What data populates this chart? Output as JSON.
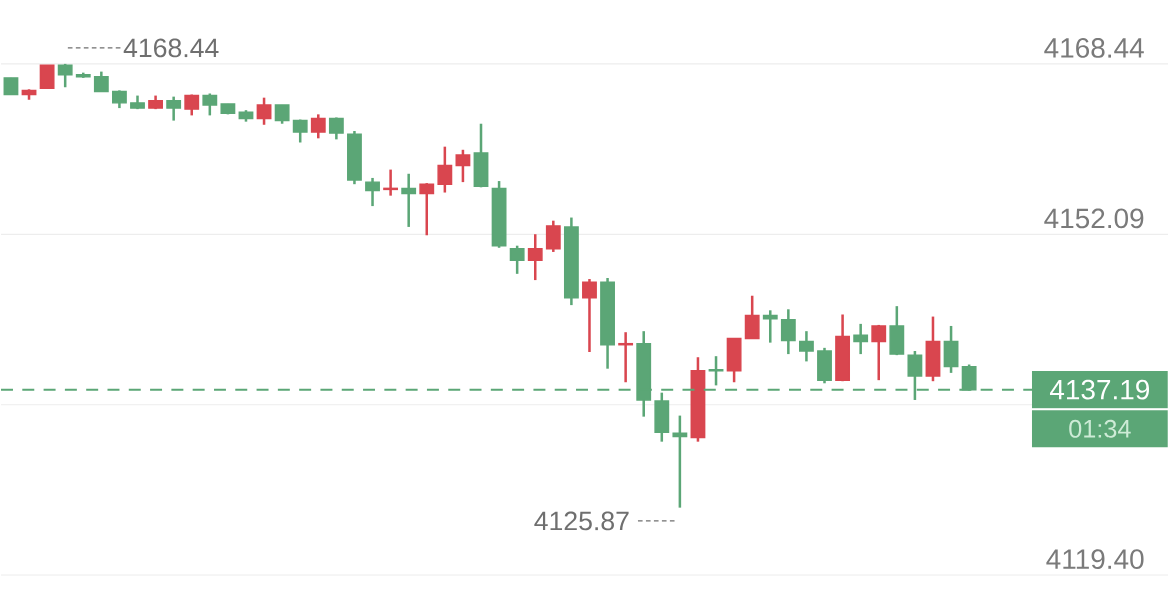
{
  "chart_data": {
    "type": "candlestick",
    "categories": [
      null,
      null,
      null,
      null,
      null,
      null,
      null,
      null,
      null,
      null,
      null,
      null,
      null,
      null,
      null,
      null,
      null,
      null,
      null,
      null,
      null,
      null,
      null,
      null,
      null,
      null,
      null,
      null,
      null,
      null,
      null,
      null,
      null,
      null,
      null,
      null,
      null,
      null,
      null,
      null,
      null,
      null,
      null,
      null,
      null,
      null,
      null,
      null,
      null,
      null,
      null,
      null,
      null,
      null
    ],
    "ohlc": [
      [
        4167.1,
        4167.1,
        4165.5,
        4165.5
      ],
      [
        4165.5,
        4166.0,
        4165.0,
        4165.9
      ],
      [
        4166.1,
        4168.3,
        4166.1,
        4168.3
      ],
      [
        4168.3,
        4168.44,
        4166.2,
        4167.4
      ],
      [
        4167.4,
        4167.6,
        4167.1,
        4167.2
      ],
      [
        4167.2,
        4167.7,
        4165.8,
        4165.8
      ],
      [
        4165.8,
        4165.9,
        4164.2,
        4164.7
      ],
      [
        4164.7,
        4165.4,
        4164.1,
        4164.2
      ],
      [
        4164.2,
        4165.4,
        4164.1,
        4164.9
      ],
      [
        4164.9,
        4165.3,
        4163.0,
        4164.2
      ],
      [
        4164.1,
        4165.5,
        4163.5,
        4165.4
      ],
      [
        4165.4,
        4165.6,
        4163.5,
        4164.5
      ],
      [
        4164.6,
        4164.6,
        4163.6,
        4163.7
      ],
      [
        4163.8,
        4164.0,
        4162.9,
        4163.2
      ],
      [
        4163.2,
        4165.2,
        4162.6,
        4164.5
      ],
      [
        4164.5,
        4164.5,
        4162.7,
        4163.0
      ],
      [
        4163.0,
        4163.1,
        4160.9,
        4161.9
      ],
      [
        4161.9,
        4163.6,
        4161.3,
        4163.2
      ],
      [
        4163.2,
        4163.3,
        4161.2,
        4161.8
      ],
      [
        4161.7,
        4162.0,
        4156.9,
        4157.3
      ],
      [
        4157.1,
        4157.5,
        4154.8,
        4156.3
      ],
      [
        4156.4,
        4158.3,
        4155.8,
        4156.5
      ],
      [
        4156.5,
        4157.9,
        4152.8,
        4156.0
      ],
      [
        4156.0,
        4157.0,
        4152.0,
        4156.9
      ],
      [
        4156.9,
        4160.5,
        4156.1,
        4158.7
      ],
      [
        4158.7,
        4160.2,
        4157.1,
        4159.7
      ],
      [
        4159.9,
        4162.7,
        4156.6,
        4156.7
      ],
      [
        4156.5,
        4157.2,
        4150.8,
        4151.0
      ],
      [
        4150.7,
        4151.0,
        4148.3,
        4149.6
      ],
      [
        4149.6,
        4152.1,
        4147.7,
        4150.7
      ],
      [
        4150.7,
        4153.4,
        4150.4,
        4152.9
      ],
      [
        4152.8,
        4153.7,
        4145.3,
        4146.0
      ],
      [
        4146.0,
        4147.8,
        4140.8,
        4147.5
      ],
      [
        4147.5,
        4147.9,
        4139.2,
        4141.5
      ],
      [
        4141.5,
        4142.7,
        4137.9,
        4141.6
      ],
      [
        4141.6,
        4142.8,
        4134.6,
        4136.2
      ],
      [
        4136.1,
        4136.9,
        4132.2,
        4133.1
      ],
      [
        4133.0,
        4134.7,
        4125.87,
        4132.7
      ],
      [
        4132.6,
        4140.3,
        4132.2,
        4139.0
      ],
      [
        4139.1,
        4140.4,
        4137.6,
        4139.0
      ],
      [
        4139.0,
        4142.1,
        4137.9,
        4142.1
      ],
      [
        4142.1,
        4146.2,
        4142.1,
        4144.3
      ],
      [
        4144.3,
        4144.8,
        4141.7,
        4144.0
      ],
      [
        4143.9,
        4144.9,
        4140.6,
        4141.9
      ],
      [
        4141.8,
        4142.8,
        4139.9,
        4140.9
      ],
      [
        4140.9,
        4141.2,
        4137.8,
        4138.1
      ],
      [
        4138.1,
        4144.4,
        4138.0,
        4142.3
      ],
      [
        4142.4,
        4143.5,
        4140.6,
        4141.8
      ],
      [
        4141.8,
        4143.4,
        4138.1,
        4143.3
      ],
      [
        4143.3,
        4145.2,
        4140.5,
        4140.6
      ],
      [
        4140.5,
        4140.9,
        4136.2,
        4138.5
      ],
      [
        4138.5,
        4144.2,
        4138.0,
        4141.8
      ],
      [
        4141.8,
        4143.3,
        4138.8,
        4139.4
      ],
      [
        4139.4,
        4139.6,
        4137.1,
        4137.19
      ]
    ],
    "colors": [
      "#5ba676",
      "#d9464f",
      "#d9464f",
      "#5ba676",
      "#5ba676",
      "#5ba676",
      "#5ba676",
      "#5ba676",
      "#d9464f",
      "#5ba676",
      "#d9464f",
      "#5ba676",
      "#5ba676",
      "#5ba676",
      "#d9464f",
      "#5ba676",
      "#5ba676",
      "#d9464f",
      "#5ba676",
      "#5ba676",
      "#5ba676",
      "#d9464f",
      "#5ba676",
      "#d9464f",
      "#d9464f",
      "#d9464f",
      "#5ba676",
      "#5ba676",
      "#5ba676",
      "#d9464f",
      "#d9464f",
      "#5ba676",
      "#d9464f",
      "#5ba676",
      "#d9464f",
      "#5ba676",
      "#5ba676",
      "#5ba676",
      "#d9464f",
      "#5ba676",
      "#d9464f",
      "#d9464f",
      "#5ba676",
      "#5ba676",
      "#5ba676",
      "#5ba676",
      "#d9464f",
      "#5ba676",
      "#d9464f",
      "#5ba676",
      "#5ba676",
      "#d9464f",
      "#5ba676",
      "#5ba676"
    ],
    "ylim": [
      4119.4,
      4168.44
    ],
    "yticks": [
      4168.44,
      4152.09,
      {
        "value": 4135.74,
        "label": null
      },
      {
        "value": 4119.4,
        "label": "4119.40"
      }
    ],
    "tick_labels": "y",
    "grid": "y",
    "ref_lines": [
      {
        "axis": "y",
        "value": 4137.19,
        "label": "4137.19",
        "color": "#5ba676",
        "line_style": "dashed"
      }
    ],
    "annotations": [
      "4168.44",
      "4125.87",
      "01:34"
    ]
  }
}
